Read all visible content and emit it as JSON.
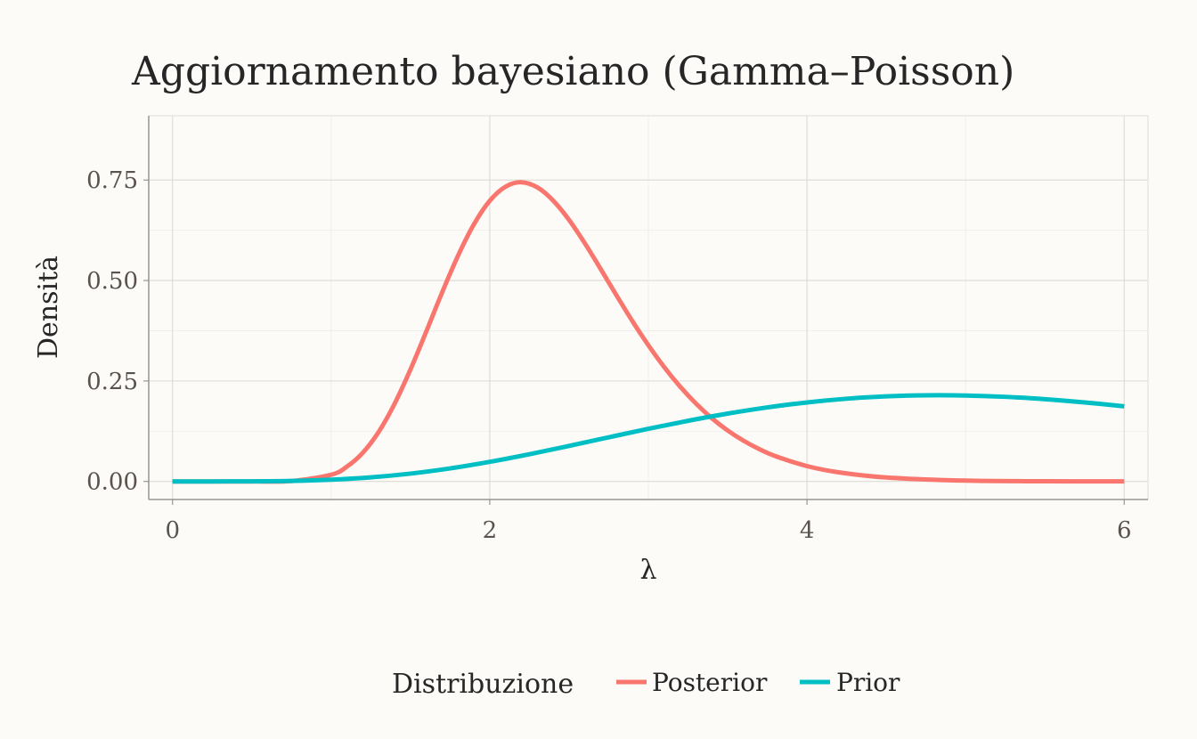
{
  "chart_data": {
    "type": "line",
    "title": "Aggiornamento bayesiano (Gamma–Poisson)",
    "xlabel": "λ",
    "ylabel": "Densità",
    "xlim": [
      -0.15,
      6.15
    ],
    "ylim": [
      -0.045,
      0.91
    ],
    "x_ticks": [
      0,
      2,
      4,
      6
    ],
    "x_tick_labels": [
      "0",
      "2",
      "4",
      "6"
    ],
    "y_ticks": [
      0,
      0.25,
      0.5,
      0.75
    ],
    "y_tick_labels": [
      "0.00",
      "0.25",
      "0.50",
      "0.75"
    ],
    "grid": true,
    "legend": {
      "title": "Distribuzione",
      "placement": "bottom"
    },
    "series": [
      {
        "name": "Posterior",
        "color": "#f8766d",
        "x": [
          0,
          0.25,
          0.5,
          0.75,
          1.0,
          1.1,
          1.2,
          1.3,
          1.4,
          1.5,
          1.6,
          1.7,
          1.8,
          1.9,
          2.0,
          2.1,
          2.2,
          2.3,
          2.4,
          2.5,
          2.6,
          2.7,
          2.8,
          2.9,
          3.0,
          3.1,
          3.2,
          3.3,
          3.4,
          3.5,
          3.6,
          3.7,
          3.8,
          4.0,
          4.2,
          4.5,
          5.0,
          5.5,
          6.0
        ],
        "y": [
          0,
          0.0,
          0.0,
          0.0009,
          0.0167,
          0.037,
          0.0715,
          0.1234,
          0.1933,
          0.2785,
          0.3733,
          0.4706,
          0.5618,
          0.6398,
          0.6983,
          0.7336,
          0.7445,
          0.7317,
          0.6988,
          0.6508,
          0.5922,
          0.5281,
          0.4624,
          0.3985,
          0.3389,
          0.2844,
          0.236,
          0.1937,
          0.1574,
          0.1267,
          0.1012,
          0.0802,
          0.063,
          0.0381,
          0.0226,
          0.0098,
          0.002,
          0.0004,
          0.0001
        ]
      },
      {
        "name": "Prior",
        "color": "#00bfc4",
        "x": [
          0,
          0.25,
          0.5,
          0.75,
          1.0,
          1.25,
          1.5,
          1.75,
          2.0,
          2.25,
          2.5,
          2.75,
          3.0,
          3.25,
          3.5,
          3.75,
          4.0,
          4.25,
          4.5,
          4.75,
          5.0,
          5.25,
          5.5,
          5.75,
          6.0
        ],
        "y": [
          0,
          0.0,
          0.0002,
          0.0013,
          0.0043,
          0.0101,
          0.0194,
          0.0324,
          0.0487,
          0.0677,
          0.0884,
          0.1098,
          0.1309,
          0.1508,
          0.1688,
          0.1842,
          0.1966,
          0.2058,
          0.2117,
          0.2143,
          0.2138,
          0.2105,
          0.2046,
          0.1966,
          0.1868
        ]
      }
    ]
  }
}
